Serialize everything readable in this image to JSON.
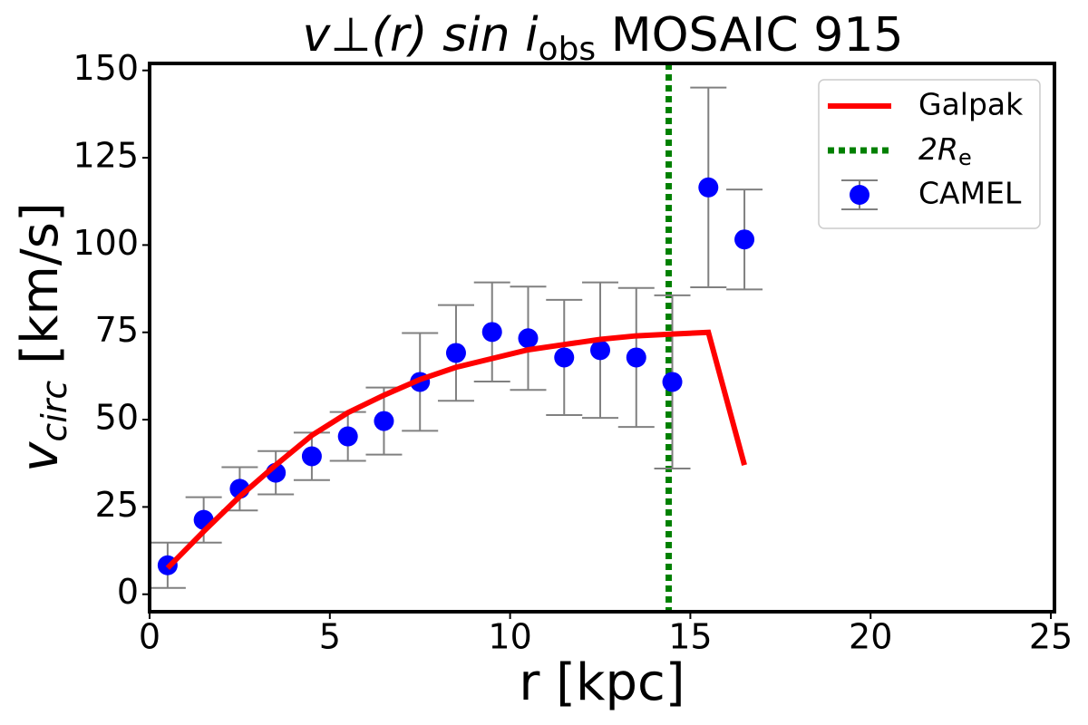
{
  "chart_data": {
    "type": "errorbar_line",
    "title": "v⊥(r) sin i",
    "title_sub": "obs",
    "title_rest": " MOSAIC 915",
    "xlabel": "r [kpc]",
    "ylabel": "v",
    "ylabel_sub": "circ",
    "ylabel_rest": " [km/s]",
    "xlim": [
      0,
      25.1
    ],
    "ylim": [
      -5,
      152
    ],
    "xticks": [
      0,
      5,
      10,
      15,
      20,
      25
    ],
    "yticks": [
      0,
      25,
      50,
      75,
      100,
      125,
      150
    ],
    "legend": "upper right",
    "series": [
      {
        "name": "Galpak",
        "color": "#ff0000",
        "kind": "line",
        "x": [
          0.5,
          1.5,
          2.5,
          3.5,
          4.5,
          5.5,
          6.5,
          7.5,
          8.5,
          9.5,
          10.5,
          11.5,
          12.5,
          13.5,
          14.5,
          15.5,
          16.5
        ],
        "values": [
          7.5,
          18,
          28,
          37,
          45.5,
          52,
          57,
          61.5,
          65,
          67.5,
          70,
          71.5,
          73,
          74,
          74.5,
          75,
          37
        ]
      },
      {
        "name": "CAMEL",
        "color": "#0000ff",
        "error_color": "#808080",
        "kind": "errorbar",
        "x": [
          0.5,
          1.5,
          2.5,
          3.5,
          4.5,
          5.5,
          6.5,
          7.5,
          8.5,
          9.5,
          10.5,
          11.5,
          12.5,
          13.5,
          14.5,
          15.5,
          16.5
        ],
        "values": [
          8.3,
          21.3,
          30.2,
          34.8,
          39.5,
          45.2,
          49.6,
          60.8,
          69.1,
          75.1,
          73.3,
          67.8,
          69.9,
          67.8,
          60.8,
          116.5,
          101.6
        ],
        "errors": [
          6.5,
          6.5,
          6.2,
          6.2,
          6.8,
          7,
          9.6,
          14,
          13.7,
          14.2,
          14.8,
          16.5,
          19.4,
          19.9,
          24.8,
          28.6,
          14.3
        ]
      }
    ],
    "vline": {
      "x": 14.4,
      "name": "2R",
      "name_sub": "e",
      "color": "#008000"
    }
  }
}
